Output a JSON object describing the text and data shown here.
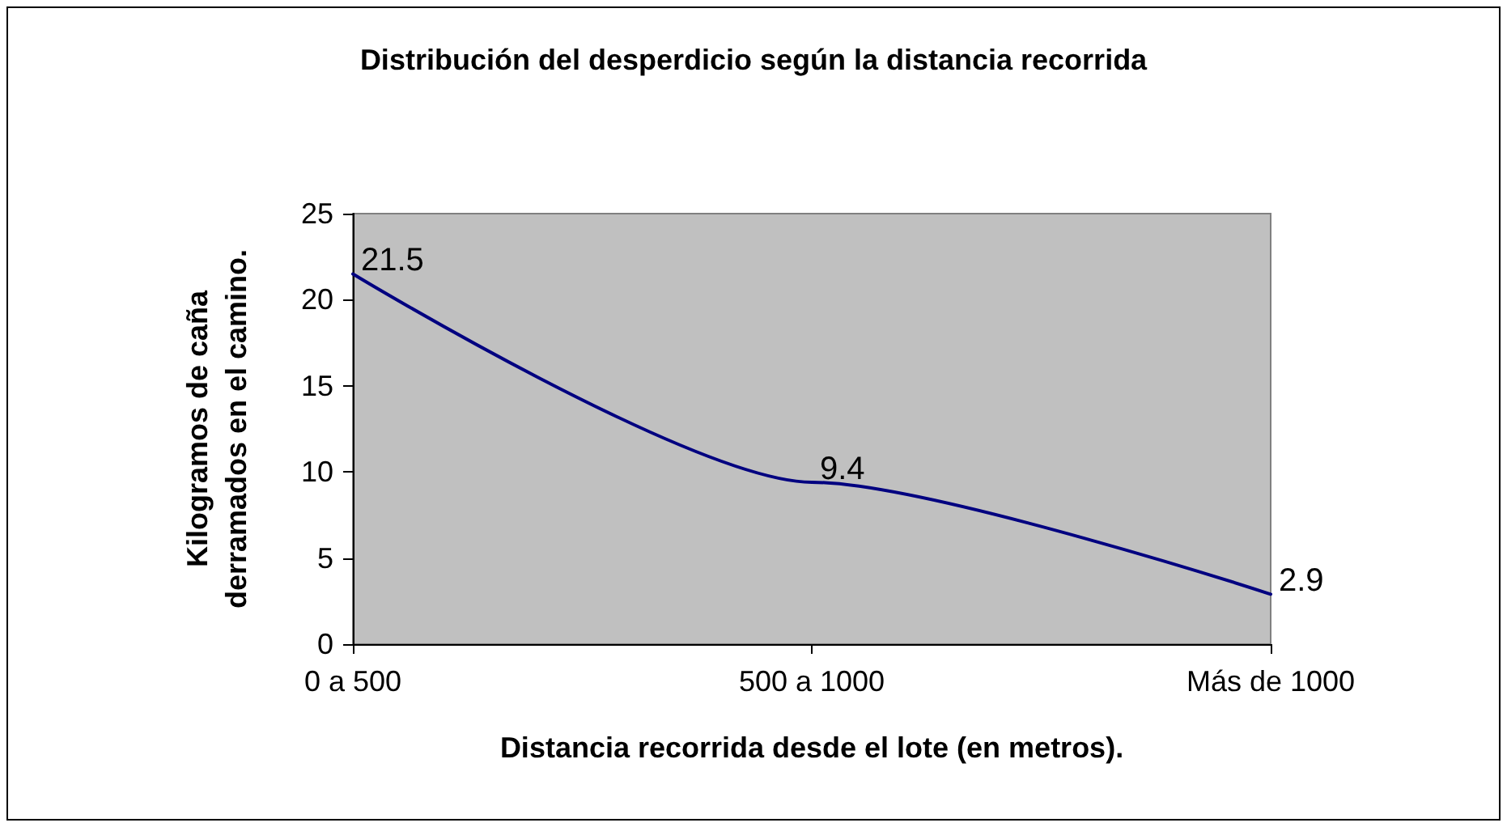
{
  "chart_data": {
    "type": "line",
    "title": "Distribución del desperdicio según la distancia recorrida",
    "xlabel": "Distancia recorrida desde el lote (en metros).",
    "ylabel": "Kilogramos de caña derramados en el camino.",
    "categories": [
      "0 a 500",
      "500 a 1000",
      "Más de 1000"
    ],
    "series": [
      {
        "color": "#000080",
        "values": [
          21.5,
          9.4,
          2.9
        ]
      }
    ],
    "ylim": [
      0,
      25
    ],
    "yticks": [
      0,
      5,
      10,
      15,
      20,
      25
    ],
    "grid": false,
    "marker": "none",
    "line_style": "solid",
    "data_labels": true
  }
}
